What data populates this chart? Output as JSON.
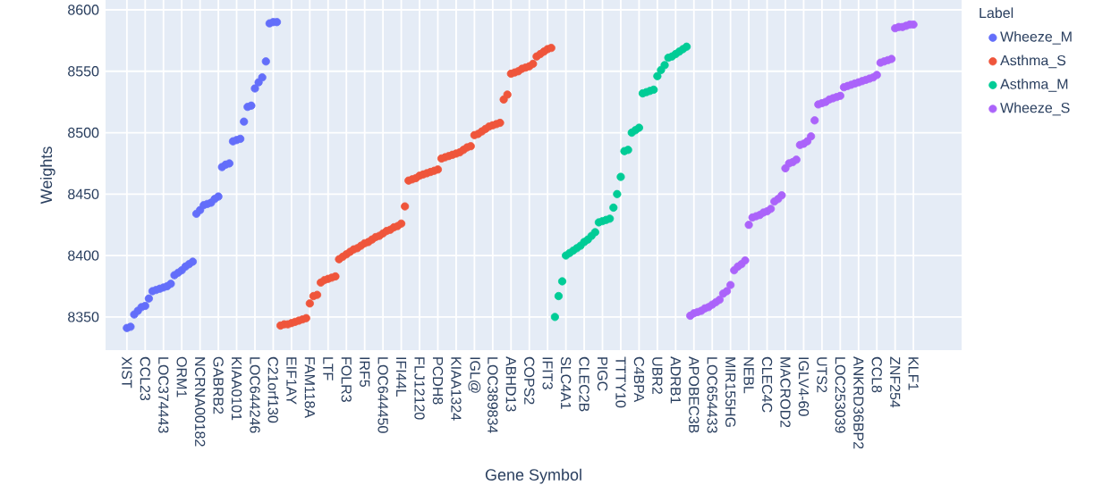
{
  "chart_data": {
    "type": "scatter",
    "xlabel": "Gene Symbol",
    "ylabel": "Weights",
    "legend_title": "Label",
    "legend": "top right",
    "grid": true,
    "marker": "circle",
    "ylim": [
      8323,
      8608
    ],
    "yticks": [
      8350,
      8400,
      8450,
      8500,
      8550,
      8600
    ],
    "categories": [
      "XIST",
      null,
      null,
      null,
      null,
      "CCL23",
      null,
      null,
      null,
      null,
      "LOC374443",
      null,
      null,
      null,
      null,
      "ORM1",
      null,
      null,
      null,
      null,
      "NCRNA00182",
      null,
      null,
      null,
      null,
      "GABRB2",
      null,
      null,
      null,
      null,
      "KIAA0101",
      null,
      null,
      null,
      null,
      "LOC644246",
      null,
      null,
      null,
      null,
      "C21orf130",
      null,
      null,
      null,
      null,
      "EIF1AY",
      null,
      null,
      null,
      null,
      "FAM118A",
      null,
      null,
      null,
      null,
      "LTF",
      null,
      null,
      null,
      null,
      "FOLR3",
      null,
      null,
      null,
      null,
      "IRF5",
      null,
      null,
      null,
      null,
      "LOC644450",
      null,
      null,
      null,
      null,
      "IFI44L",
      null,
      null,
      null,
      null,
      "FLJ12120",
      null,
      null,
      null,
      null,
      "PCDH8",
      null,
      null,
      null,
      null,
      "KIAA1324",
      null,
      null,
      null,
      null,
      "IGL@",
      null,
      null,
      null,
      null,
      "LOC389834",
      null,
      null,
      null,
      null,
      "ABHD13",
      null,
      null,
      null,
      null,
      "COPS2",
      null,
      null,
      null,
      null,
      "IFIT3",
      null,
      null,
      null,
      null,
      "SLC4A1",
      null,
      null,
      null,
      null,
      "CLEC2B",
      null,
      null,
      null,
      null,
      "PIGC",
      null,
      null,
      null,
      null,
      "TTTY10",
      null,
      null,
      null,
      null,
      "C4BPA",
      null,
      null,
      null,
      null,
      "UBR2",
      null,
      null,
      null,
      null,
      "ADRB1",
      null,
      null,
      null,
      null,
      "APOBEC3B",
      null,
      null,
      null,
      null,
      "LOC654433",
      null,
      null,
      null,
      null,
      "MIR155HG",
      null,
      null,
      null,
      null,
      "NEBL",
      null,
      null,
      null,
      null,
      "CLEC4C",
      null,
      null,
      null,
      null,
      "MACROD2",
      null,
      null,
      null,
      null,
      "IGLV4-60",
      null,
      null,
      null,
      null,
      "UTS2",
      null,
      null,
      null,
      null,
      "LOC253039",
      null,
      null,
      null,
      null,
      "ANKRD36BP2",
      null,
      null,
      null,
      null,
      "CCL8",
      null,
      null,
      null,
      null,
      "ZNF254",
      null,
      null,
      null,
      null,
      "KLF1"
    ],
    "series": [
      {
        "name": "Wheeze_M",
        "color": "#636efa",
        "values": [
          8341,
          8342,
          8352,
          8355,
          8358,
          8359,
          8365,
          8371,
          8372,
          8373,
          8374,
          8375,
          8377,
          8384,
          8386,
          8388,
          8391,
          8393,
          8395,
          8434,
          8437,
          8441,
          8442,
          8443,
          8446,
          8448,
          8472,
          8474,
          8475,
          8493,
          8494,
          8495,
          8509,
          8521,
          8522,
          8536,
          8541,
          8545,
          8558,
          8589,
          8590,
          8590,
          null,
          null,
          null,
          null,
          null,
          null,
          null,
          null,
          null,
          null,
          null,
          null,
          null,
          null,
          null,
          null,
          null,
          null,
          null,
          null,
          null,
          null,
          null,
          null,
          null,
          null,
          null,
          null,
          null,
          null,
          null,
          null,
          null,
          null,
          null,
          null,
          null,
          null,
          null,
          null,
          null,
          null,
          null,
          null,
          null,
          null,
          null,
          null,
          null,
          null,
          null,
          null,
          null,
          null,
          null,
          null,
          null,
          null,
          null,
          null,
          null,
          null,
          null,
          null,
          null,
          null,
          null,
          null,
          null,
          null,
          null,
          null,
          null,
          null,
          null,
          null,
          null,
          null,
          null,
          null,
          null,
          null,
          null,
          null,
          null,
          null,
          null,
          null,
          null,
          null,
          null,
          null,
          null,
          null,
          null,
          null,
          null,
          null,
          null,
          null,
          null,
          null,
          null,
          null,
          null,
          null,
          null,
          null,
          null,
          null,
          null,
          null,
          null,
          null,
          null,
          null,
          null,
          null,
          null,
          null,
          null,
          null,
          null,
          null,
          null,
          null,
          null,
          null,
          null,
          null,
          null,
          null,
          null,
          null,
          null,
          null,
          null,
          null,
          null,
          null,
          null,
          null,
          null,
          null,
          null,
          null,
          null,
          null,
          null,
          null,
          null,
          null,
          null,
          null,
          null,
          null,
          null,
          null,
          null,
          null,
          null,
          null,
          null,
          null,
          null,
          null,
          null,
          null,
          null,
          null,
          null,
          null,
          null,
          null
        ]
      },
      {
        "name": "Asthma_S",
        "color": "#ef553b",
        "values": [
          null,
          null,
          null,
          null,
          null,
          null,
          null,
          null,
          null,
          null,
          null,
          null,
          null,
          null,
          null,
          null,
          null,
          null,
          null,
          null,
          null,
          null,
          null,
          null,
          null,
          null,
          null,
          null,
          null,
          null,
          null,
          null,
          null,
          null,
          null,
          null,
          null,
          null,
          null,
          null,
          null,
          null,
          8343,
          8344,
          8344,
          8345,
          8346,
          8347,
          8348,
          8349,
          8361,
          8367,
          8368,
          8378,
          8380,
          8381,
          8382,
          8383,
          8397,
          8399,
          8401,
          8403,
          8405,
          8406,
          8408,
          8410,
          8411,
          8413,
          8415,
          8416,
          8418,
          8420,
          8421,
          8423,
          8424,
          8426,
          8440,
          8461,
          8462,
          8463,
          8465,
          8466,
          8467,
          8468,
          8469,
          8470,
          8479,
          8480,
          8481,
          8482,
          8483,
          8484,
          8486,
          8488,
          8489,
          8498,
          8499,
          8501,
          8503,
          8505,
          8506,
          8507,
          8508,
          8527,
          8531,
          8548,
          8549,
          8550,
          8552,
          8553,
          8554,
          8556,
          8562,
          8564,
          8566,
          8568,
          8569,
          null,
          null,
          null,
          null,
          null,
          null,
          null,
          null,
          null,
          null,
          null,
          null,
          null,
          null,
          null,
          null,
          null,
          null,
          null,
          null,
          null,
          null,
          null,
          null,
          null,
          null,
          null,
          null,
          null,
          null,
          null,
          null,
          null,
          null,
          null,
          null,
          null,
          null,
          null,
          null,
          null,
          null,
          null,
          null,
          null,
          null,
          null,
          null,
          null,
          null,
          null,
          null,
          null,
          null,
          null,
          null,
          null,
          null,
          null,
          null,
          null,
          null,
          null,
          null,
          null,
          null,
          null,
          null,
          null,
          null,
          null,
          null,
          null,
          null,
          null,
          null,
          null,
          null,
          null,
          null,
          null,
          null,
          null,
          null,
          null,
          null,
          null,
          null,
          null,
          null,
          null,
          null,
          null,
          null,
          null,
          null,
          null,
          null,
          null
        ]
      },
      {
        "name": "Asthma_M",
        "color": "#00cc96",
        "values": [
          null,
          null,
          null,
          null,
          null,
          null,
          null,
          null,
          null,
          null,
          null,
          null,
          null,
          null,
          null,
          null,
          null,
          null,
          null,
          null,
          null,
          null,
          null,
          null,
          null,
          null,
          null,
          null,
          null,
          null,
          null,
          null,
          null,
          null,
          null,
          null,
          null,
          null,
          null,
          null,
          null,
          null,
          null,
          null,
          null,
          null,
          null,
          null,
          null,
          null,
          null,
          null,
          null,
          null,
          null,
          null,
          null,
          null,
          null,
          null,
          null,
          null,
          null,
          null,
          null,
          null,
          null,
          null,
          null,
          null,
          null,
          null,
          null,
          null,
          null,
          null,
          null,
          null,
          null,
          null,
          null,
          null,
          null,
          null,
          null,
          null,
          null,
          null,
          null,
          null,
          null,
          null,
          null,
          null,
          null,
          null,
          null,
          null,
          null,
          null,
          null,
          null,
          null,
          null,
          null,
          null,
          null,
          null,
          null,
          null,
          null,
          null,
          null,
          null,
          null,
          null,
          null,
          8350,
          8367,
          8379,
          8400,
          8402,
          8404,
          8406,
          8408,
          8411,
          8413,
          8416,
          8419,
          8427,
          8428,
          8429,
          8430,
          8439,
          8450,
          8464,
          8485,
          8486,
          8500,
          8502,
          8504,
          8532,
          8533,
          8534,
          8535,
          8546,
          8551,
          8555,
          8561,
          8562,
          8564,
          8566,
          8568,
          8570,
          null,
          null,
          null,
          null,
          null,
          null,
          null,
          null,
          null,
          null,
          null,
          null,
          null,
          null,
          null,
          null,
          null,
          null,
          null,
          null,
          null,
          null,
          null,
          null,
          null,
          null,
          null,
          null,
          null,
          null,
          null,
          null,
          null,
          null,
          null,
          null,
          null,
          null,
          null,
          null,
          null,
          null,
          null,
          null,
          null,
          null,
          null,
          null,
          null,
          null,
          null,
          null,
          null,
          null,
          null,
          null,
          null,
          null,
          null,
          null,
          null,
          null
        ]
      },
      {
        "name": "Wheeze_S",
        "color": "#ab63fa",
        "values": [
          null,
          null,
          null,
          null,
          null,
          null,
          null,
          null,
          null,
          null,
          null,
          null,
          null,
          null,
          null,
          null,
          null,
          null,
          null,
          null,
          null,
          null,
          null,
          null,
          null,
          null,
          null,
          null,
          null,
          null,
          null,
          null,
          null,
          null,
          null,
          null,
          null,
          null,
          null,
          null,
          null,
          null,
          null,
          null,
          null,
          null,
          null,
          null,
          null,
          null,
          null,
          null,
          null,
          null,
          null,
          null,
          null,
          null,
          null,
          null,
          null,
          null,
          null,
          null,
          null,
          null,
          null,
          null,
          null,
          null,
          null,
          null,
          null,
          null,
          null,
          null,
          null,
          null,
          null,
          null,
          null,
          null,
          null,
          null,
          null,
          null,
          null,
          null,
          null,
          null,
          null,
          null,
          null,
          null,
          null,
          null,
          null,
          null,
          null,
          null,
          null,
          null,
          null,
          null,
          null,
          null,
          null,
          null,
          null,
          null,
          null,
          null,
          null,
          null,
          null,
          null,
          null,
          null,
          null,
          null,
          null,
          null,
          null,
          null,
          null,
          null,
          null,
          null,
          null,
          null,
          null,
          null,
          null,
          null,
          null,
          null,
          null,
          null,
          null,
          null,
          null,
          null,
          null,
          null,
          null,
          null,
          null,
          null,
          null,
          null,
          null,
          null,
          null,
          null,
          8351,
          8353,
          8354,
          8355,
          8357,
          8358,
          8360,
          8362,
          8364,
          8369,
          8371,
          8376,
          8388,
          8391,
          8393,
          8396,
          8425,
          8431,
          8432,
          8433,
          8435,
          8436,
          8438,
          8444,
          8446,
          8449,
          8471,
          8475,
          8476,
          8478,
          8490,
          8491,
          8493,
          8497,
          8510,
          8523,
          8524,
          8525,
          8527,
          8528,
          8529,
          8530,
          8537,
          8538,
          8539,
          8540,
          8541,
          8542,
          8543,
          8544,
          8545,
          8547,
          8557,
          8558,
          8559,
          8560,
          8585,
          8586,
          8586,
          8587,
          8588,
          8588
        ]
      }
    ]
  }
}
